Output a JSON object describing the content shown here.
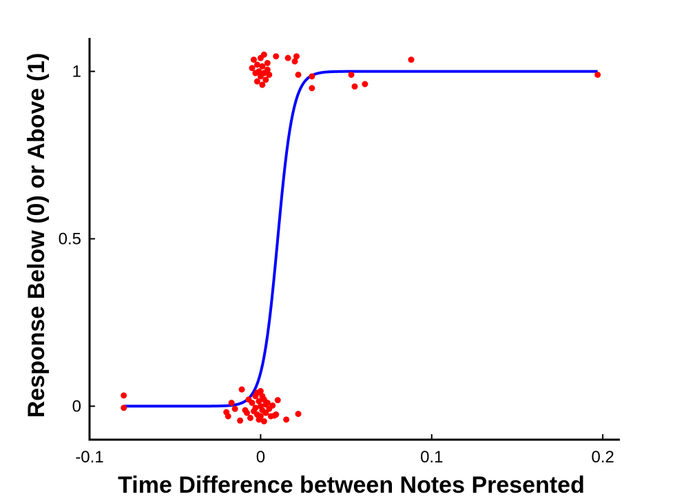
{
  "chart_data": {
    "type": "scatter",
    "title": "",
    "xlabel": "Time Difference between Notes Presented",
    "ylabel": "Response Below (0) or Above (1)",
    "xlim": [
      -0.1,
      0.21
    ],
    "ylim": [
      -0.1,
      1.1
    ],
    "xticks": [
      -0.1,
      0,
      0.1,
      0.2
    ],
    "xtick_labels": [
      "-0.1",
      "0",
      "0.1",
      "0.2"
    ],
    "yticks": [
      0,
      0.5,
      1
    ],
    "ytick_labels": [
      "0",
      "0.5",
      "1"
    ],
    "grid": false,
    "legend": "none",
    "colors": {
      "points": "#ff0000",
      "curve": "#0000ff",
      "axes": "#000000"
    },
    "series": [
      {
        "type": "scatter",
        "points": [
          [
            -0.08,
            0.032
          ],
          [
            -0.08,
            -0.005
          ],
          [
            -0.02,
            -0.018
          ],
          [
            -0.019,
            -0.03
          ],
          [
            -0.017,
            0.01
          ],
          [
            -0.015,
            -0.008
          ],
          [
            -0.012,
            -0.043
          ],
          [
            -0.011,
            0.05
          ],
          [
            -0.009,
            -0.012
          ],
          [
            -0.008,
            -0.02
          ],
          [
            -0.007,
            0.02
          ],
          [
            -0.006,
            -0.035
          ],
          [
            -0.005,
            0.01
          ],
          [
            -0.004,
            -0.015
          ],
          [
            -0.003,
            0.03
          ],
          [
            -0.003,
            -0.005
          ],
          [
            -0.002,
            0.04
          ],
          [
            -0.002,
            -0.025
          ],
          [
            -0.001,
            0.015
          ],
          [
            -0.001,
            -0.04
          ],
          [
            0.0,
            0.045
          ],
          [
            0.0,
            0.0
          ],
          [
            0.0,
            -0.03
          ],
          [
            0.001,
            0.03
          ],
          [
            0.001,
            -0.012
          ],
          [
            0.002,
            0.02
          ],
          [
            0.002,
            -0.045
          ],
          [
            0.003,
            0.005
          ],
          [
            0.003,
            -0.02
          ],
          [
            0.004,
            0.01
          ],
          [
            0.005,
            -0.008
          ],
          [
            0.006,
            -0.03
          ],
          [
            0.007,
            0.002
          ],
          [
            0.008,
            -0.028
          ],
          [
            0.009,
            -0.025
          ],
          [
            0.01,
            0.018
          ],
          [
            0.015,
            -0.04
          ],
          [
            0.022,
            -0.023
          ],
          [
            -0.005,
            1.01
          ],
          [
            -0.004,
            1.035
          ],
          [
            -0.003,
            0.995
          ],
          [
            -0.002,
            1.02
          ],
          [
            -0.002,
            0.97
          ],
          [
            -0.001,
            1.0
          ],
          [
            0.0,
            1.04
          ],
          [
            0.0,
            0.985
          ],
          [
            0.001,
            0.96
          ],
          [
            0.001,
            1.015
          ],
          [
            0.002,
            1.05
          ],
          [
            0.002,
            0.995
          ],
          [
            0.003,
            0.975
          ],
          [
            0.004,
            1.025
          ],
          [
            0.004,
            1.005
          ],
          [
            0.005,
            0.99
          ],
          [
            0.009,
            1.045
          ],
          [
            0.016,
            1.04
          ],
          [
            0.02,
            1.03
          ],
          [
            0.021,
            1.045
          ],
          [
            0.022,
            0.99
          ],
          [
            0.03,
            0.985
          ],
          [
            0.03,
            0.95
          ],
          [
            0.053,
            0.99
          ],
          [
            0.055,
            0.955
          ],
          [
            0.061,
            0.962
          ],
          [
            0.088,
            1.035
          ],
          [
            0.197,
            0.99
          ]
        ]
      },
      {
        "type": "line",
        "fit": "logistic",
        "x_range": [
          -0.08,
          0.197
        ],
        "midpoint": 0.01,
        "slope": 220
      }
    ]
  }
}
